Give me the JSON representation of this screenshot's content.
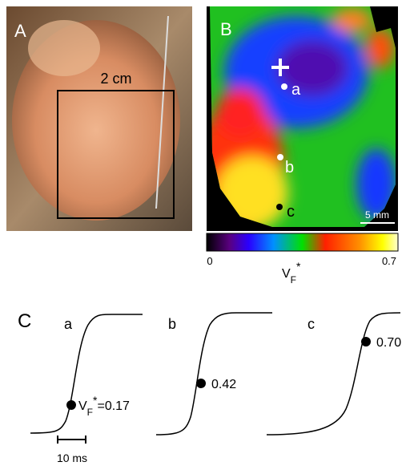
{
  "panel_a": {
    "label": "A",
    "scale": "2 cm"
  },
  "panel_b": {
    "label": "B",
    "sites": [
      "a",
      "b",
      "c"
    ],
    "scale": "5 mm",
    "colorbar": {
      "min": "0",
      "max": "0.7",
      "symbol": {
        "main": "V",
        "sub": "F",
        "sup": "*"
      }
    }
  },
  "panel_c": {
    "label": "C",
    "traces": [
      {
        "site": "a",
        "symbol": {
          "main": "V",
          "sub": "F",
          "sup": "*"
        },
        "value": "=0.17"
      },
      {
        "site": "b",
        "value": "0.42"
      },
      {
        "site": "c",
        "value": "0.70"
      }
    ],
    "scale": "10 ms"
  }
}
